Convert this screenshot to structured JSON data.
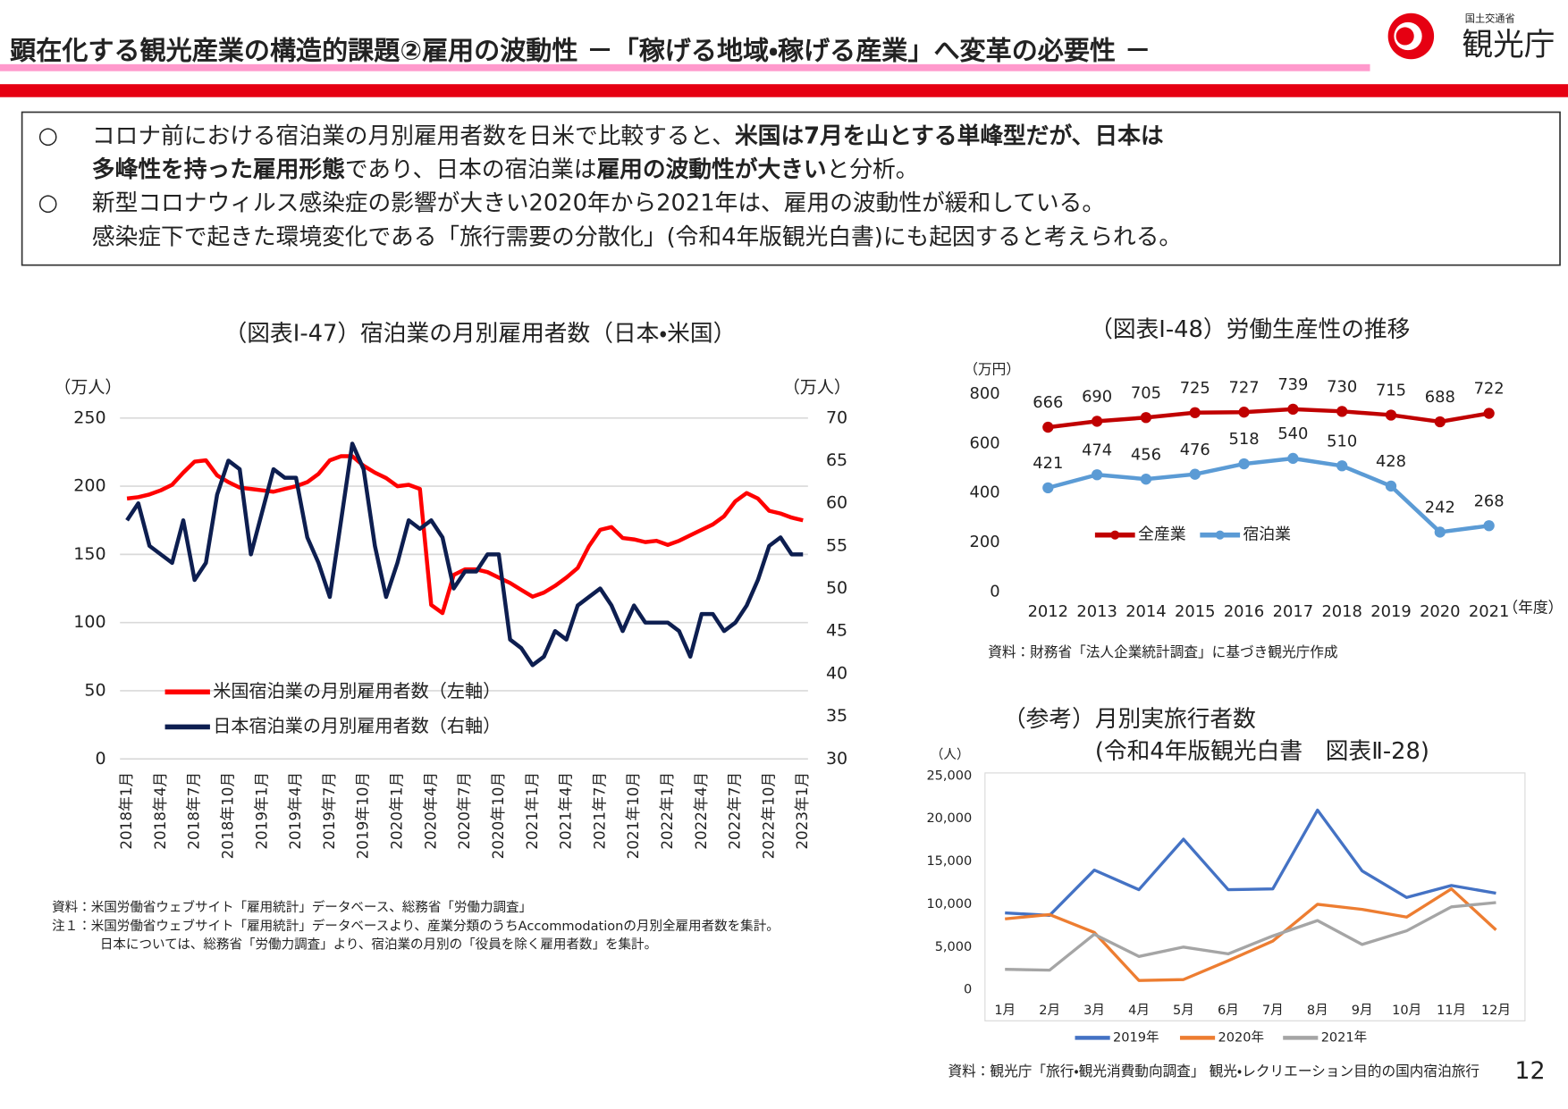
{
  "header": {
    "title": "顕在化する観光産業の構造的課題②雇用の波動性 －「稼げる地域・稼げる産業」へ変革の必要性 －",
    "logo_small": "国土交通省",
    "logo": "観光庁"
  },
  "bullets": [
    {
      "marker": "○",
      "lines": [
        [
          {
            "text": "コロナ前における宿泊業の月別雇用者数を日米で比較すると、",
            "bold": false
          },
          {
            "text": "米国は7月を山とする単峰型だが、日本は",
            "bold": true
          }
        ],
        [
          {
            "text": "多峰性を持った雇用形態",
            "bold": true
          },
          {
            "text": "であり、日本の宿泊業は",
            "bold": false
          },
          {
            "text": "雇用の波動性が大きい",
            "bold": true
          },
          {
            "text": "と分析。",
            "bold": false
          }
        ]
      ]
    },
    {
      "marker": "○",
      "lines": [
        [
          {
            "text": "新型コロナウィルス感染症の影響が大きい2020年から2021年は、雇用の波動性が緩和している。",
            "bold": false
          }
        ],
        [
          {
            "text": "感染症下で起きた環境変化である「旅行需要の分散化」(令和4年版観光白書)にも起因すると考えられる。",
            "bold": false
          }
        ]
      ]
    }
  ],
  "chart_data": [
    {
      "type": "line",
      "title": "（図表Ⅰ-47）宿泊業の月別雇用者数（日本・米国）",
      "y_label": "（万人）",
      "y2_label": "（万人）",
      "categories": [
        "2018年1月",
        null,
        null,
        "2018年4月",
        null,
        null,
        "2018年7月",
        null,
        null,
        "2018年10月",
        null,
        null,
        "2019年1月",
        null,
        null,
        "2019年4月",
        null,
        null,
        "2019年7月",
        null,
        null,
        "2019年10月",
        null,
        null,
        "2020年1月",
        null,
        null,
        "2020年4月",
        null,
        null,
        "2020年7月",
        null,
        null,
        "2020年10月",
        null,
        null,
        "2021年1月",
        null,
        null,
        "2021年4月",
        null,
        null,
        "2021年7月",
        null,
        null,
        "2021年10月",
        null,
        null,
        "2022年1月",
        null,
        null,
        "2022年4月",
        null,
        null,
        "2022年7月",
        null,
        null,
        "2022年10月",
        null,
        null,
        "2023年1月"
      ],
      "series": [
        {
          "name": "米国宿泊業の月別雇用者数（左軸）",
          "color": "#ff0000",
          "axis": "y",
          "values": [
            191,
            192,
            194,
            197,
            201,
            210,
            218,
            219,
            208,
            203,
            199,
            198,
            197,
            196,
            198,
            200,
            203,
            209,
            219,
            222,
            222,
            215,
            210,
            206,
            200,
            201,
            198,
            113,
            107,
            135,
            139,
            139,
            137,
            133,
            129,
            124,
            119,
            122,
            127,
            133,
            140,
            156,
            168,
            170,
            162,
            161,
            159,
            160,
            157,
            160,
            164,
            168,
            172,
            178,
            189,
            195,
            191,
            182,
            180,
            177,
            175
          ]
        },
        {
          "name": "日本宿泊業の月別雇用者数（右軸）",
          "color": "#0d1e50",
          "axis": "y2",
          "values": [
            58,
            60,
            55,
            54,
            53,
            58,
            51,
            53,
            61,
            65,
            64,
            54,
            59,
            64,
            63,
            63,
            56,
            53,
            49,
            58,
            67,
            64,
            55,
            49,
            53,
            58,
            57,
            58,
            56,
            50,
            52,
            52,
            54,
            54,
            44,
            43,
            41,
            42,
            45,
            44,
            48,
            49,
            50,
            48,
            45,
            48,
            46,
            46,
            46,
            45,
            42,
            47,
            47,
            45,
            46,
            48,
            51,
            55,
            56,
            54,
            54
          ]
        }
      ],
      "ylim": [
        0,
        250
      ],
      "yticks": [
        0,
        50,
        100,
        150,
        200,
        250
      ],
      "y2lim": [
        30,
        70
      ],
      "y2ticks": [
        30,
        35,
        40,
        45,
        50,
        55,
        60,
        65,
        70
      ],
      "grid": true,
      "markers": false,
      "show_value_labels": false,
      "legend": "lower-left",
      "source": "資料：米国労働省ウェブサイト「雇用統計」データベース、総務省「労働力調査」",
      "notes": [
        "注１：米国労働省ウェブサイト「雇用統計」データベースより、産業分類のうちAccommodationの月別全雇用者数を集計。",
        "日本については、総務省「労働力調査」より、宿泊業の月別の「役員を除く雇用者数」を集計。"
      ]
    },
    {
      "type": "line",
      "title": "（図表Ⅰ-48）労働生産性の推移",
      "y_label": "（万円）",
      "x_label": "（年度）",
      "categories": [
        "2012",
        "2013",
        "2014",
        "2015",
        "2016",
        "2017",
        "2018",
        "2019",
        "2020",
        "2021"
      ],
      "series": [
        {
          "name": "全産業",
          "color": "#c00000",
          "values": [
            666,
            690,
            705,
            725,
            727,
            739,
            730,
            715,
            688,
            722
          ]
        },
        {
          "name": "宿泊業",
          "color": "#5b9bd5",
          "values": [
            421,
            474,
            456,
            476,
            518,
            540,
            510,
            428,
            242,
            268
          ]
        }
      ],
      "ylim": [
        0,
        800
      ],
      "yticks": [
        0,
        200,
        400,
        600,
        800
      ],
      "grid": false,
      "markers": true,
      "show_value_labels": true,
      "legend": "center",
      "source": "資料：財務省「法人企業統計調査」に基づき観光庁作成"
    },
    {
      "type": "line",
      "title": "（参考）月別実旅行者数",
      "subtitle": "(令和4年版観光白書　図表Ⅱ-28)",
      "y_label": "（人）",
      "categories": [
        "1月",
        "2月",
        "3月",
        "4月",
        "5月",
        "6月",
        "7月",
        "8月",
        "9月",
        "10月",
        "11月",
        "12月"
      ],
      "series": [
        {
          "name": "2019年",
          "color": "#4472c4",
          "values": [
            9000,
            8700,
            14000,
            11700,
            17600,
            11700,
            11800,
            21000,
            13900,
            10800,
            12200,
            11300
          ]
        },
        {
          "name": "2020年",
          "color": "#ed7d31",
          "values": [
            8300,
            8800,
            6700,
            1100,
            1200,
            3400,
            5700,
            10000,
            9400,
            8500,
            11800,
            7000
          ]
        },
        {
          "name": "2021年",
          "color": "#a5a5a5",
          "values": [
            2400,
            2300,
            6500,
            3900,
            5000,
            4200,
            6300,
            8100,
            5300,
            6900,
            9700,
            10200
          ]
        }
      ],
      "ylim": [
        0,
        25000
      ],
      "yticks": [
        0,
        {
          "value": 5000,
          "label": "5,000"
        },
        {
          "value": 10000,
          "label": "10,000"
        },
        {
          "value": 15000,
          "label": "15,000"
        },
        {
          "value": 20000,
          "label": "20,000"
        },
        {
          "value": 25000,
          "label": "25,000"
        }
      ],
      "grid": false,
      "markers": false,
      "show_value_labels": false,
      "legend": "bottom",
      "source": "資料：観光庁「旅行・観光消費動向調査」 観光・レクリエーション目的の国内宿泊旅行"
    }
  ],
  "page_number": "12"
}
